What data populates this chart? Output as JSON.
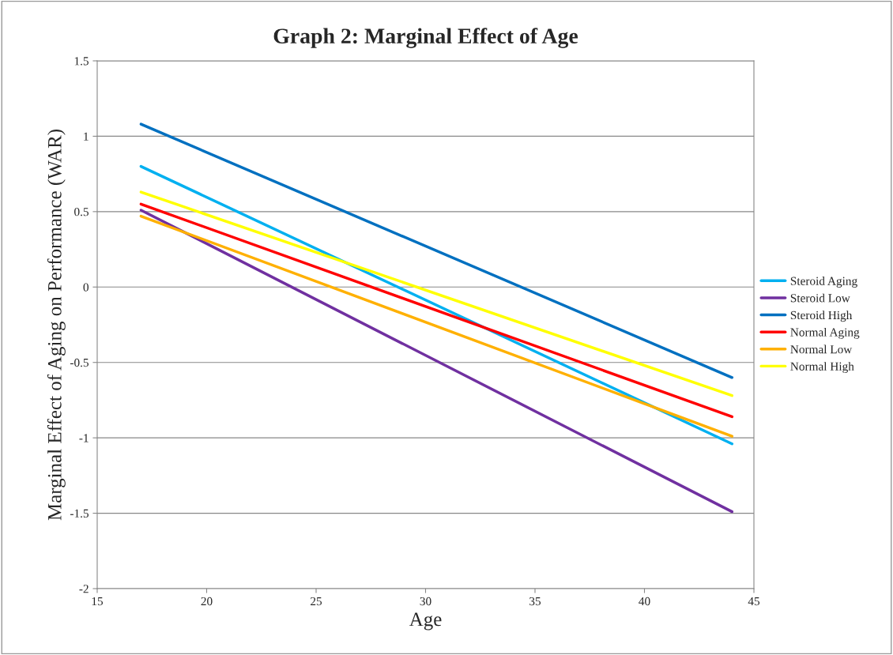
{
  "chart_data": {
    "type": "line",
    "title": "Graph 2: Marginal Effect of Age",
    "xlabel": "Age",
    "ylabel": "Marginal Effect of Aging on Performance (WAR)",
    "x": [
      17,
      44
    ],
    "series": [
      {
        "name": "Steroid Aging",
        "color": "#00b0f0",
        "values": [
          0.8,
          -1.04
        ]
      },
      {
        "name": "Steroid Low",
        "color": "#7030a0",
        "values": [
          0.51,
          -1.49
        ]
      },
      {
        "name": "Steroid High",
        "color": "#0070c0",
        "values": [
          1.08,
          -0.6
        ]
      },
      {
        "name": "Normal Aging",
        "color": "#ff0000",
        "values": [
          0.55,
          -0.86
        ]
      },
      {
        "name": "Normal Low",
        "color": "#ffb000",
        "values": [
          0.47,
          -0.99
        ]
      },
      {
        "name": "Normal High",
        "color": "#ffff00",
        "values": [
          0.63,
          -0.72
        ]
      }
    ],
    "xlim": [
      15,
      45
    ],
    "xticks": [
      15,
      20,
      25,
      30,
      35,
      40,
      45
    ],
    "ylim": [
      -2,
      1.5
    ],
    "yticks": [
      {
        "value": -2,
        "label": "-2"
      },
      {
        "value": -1.5,
        "label": "-1.5"
      },
      {
        "value": -1,
        "label": "-1"
      },
      {
        "value": -0.5,
        "label": "-0.5"
      },
      0,
      0.5,
      1,
      1.5
    ],
    "grid": "y",
    "legend": "right",
    "marker": "none",
    "line_style": "solid"
  }
}
